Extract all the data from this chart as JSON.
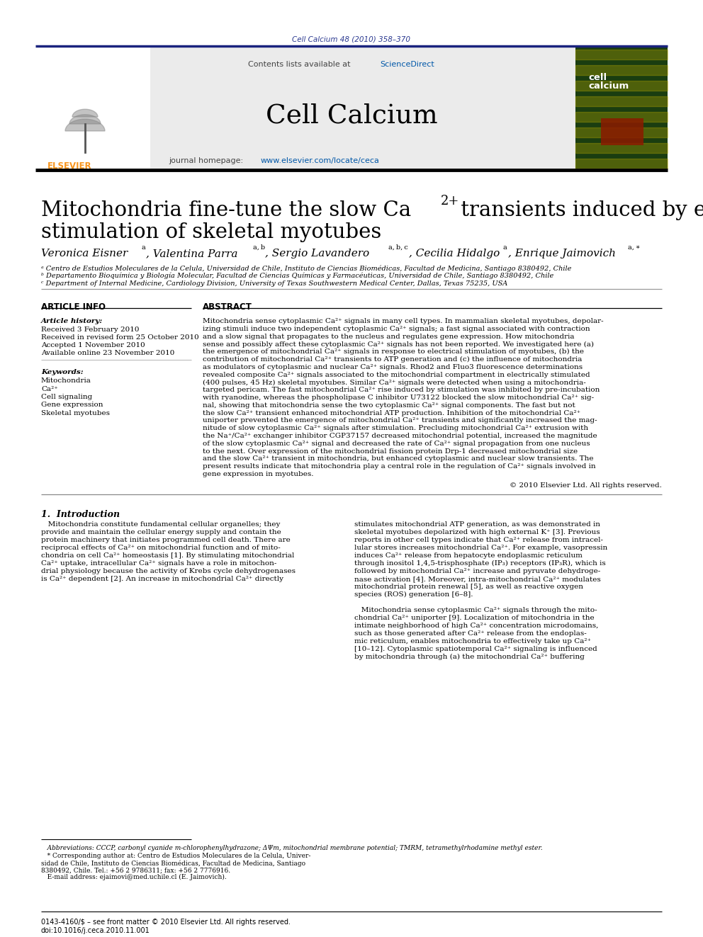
{
  "journal_ref": "Cell Calcium 48 (2010) 358–370",
  "journal_ref_color": "#2b3990",
  "link_blue": "#0057a8",
  "journal_name": "Cell Calcium",
  "journal_url_prefix": "journal homepage: ",
  "journal_url": "www.elsevier.com/locate/ceca",
  "contents_text": "Contents lists available at ",
  "science_direct": "ScienceDirect",
  "title_part1": "Mitochondria fine-tune the slow Ca",
  "title_sup": "2+",
  "title_part2": " transients induced by electrical",
  "title_line2": "stimulation of skeletal myotubes",
  "affil_a": "ᵃ Centro de Estudios Moleculares de la Celula, Universidad de Chile, Instituto de Ciencias Biomédicas, Facultad de Medicina, Santiago 8380492, Chile",
  "affil_b": "ᵇ Departamento Bioquímica y Biología Molecular, Facultad de Ciencias Químicas y Farmacéuticas, Universidad de Chile, Santiago 8380492, Chile",
  "affil_c": "ᶜ Department of Internal Medicine, Cardiology Division, University of Texas Southwestern Medical Center, Dallas, Texas 75235, USA",
  "article_info_header": "ARTICLE INFO",
  "abstract_header": "ABSTRACT",
  "article_history_label": "Article history:",
  "received1": "Received 3 February 2010",
  "received2": "Received in revised form 25 October 2010",
  "accepted": "Accepted 1 November 2010",
  "available": "Available online 23 November 2010",
  "keywords_label": "Keywords:",
  "keywords": [
    "Mitochondria",
    "Ca²⁺",
    "Cell signaling",
    "Gene expression",
    "Skeletal myotubes"
  ],
  "abstract_lines": [
    "Mitochondria sense cytoplasmic Ca²⁺ signals in many cell types. In mammalian skeletal myotubes, depolar-",
    "izing stimuli induce two independent cytoplasmic Ca²⁺ signals; a fast signal associated with contraction",
    "and a slow signal that propagates to the nucleus and regulates gene expression. How mitochondria",
    "sense and possibly affect these cytoplasmic Ca²⁺ signals has not been reported. We investigated here (a)",
    "the emergence of mitochondrial Ca²⁺ signals in response to electrical stimulation of myotubes, (b) the",
    "contribution of mitochondrial Ca²⁺ transients to ATP generation and (c) the influence of mitochondria",
    "as modulators of cytoplasmic and nuclear Ca²⁺ signals. Rhod2 and Fluo3 fluorescence determinations",
    "revealed composite Ca²⁺ signals associated to the mitochondrial compartment in electrically stimulated",
    "(400 pulses, 45 Hz) skeletal myotubes. Similar Ca²⁺ signals were detected when using a mitochondria-",
    "targeted pericam. The fast mitochondrial Ca²⁺ rise induced by stimulation was inhibited by pre-incubation",
    "with ryanodine, whereas the phospholipase C inhibitor U73122 blocked the slow mitochondrial Ca²⁺ sig-",
    "nal, showing that mitochondria sense the two cytoplasmic Ca²⁺ signal components. The fast but not",
    "the slow Ca²⁺ transient enhanced mitochondrial ATP production. Inhibition of the mitochondrial Ca²⁺",
    "uniporter prevented the emergence of mitochondrial Ca²⁺ transients and significantly increased the mag-",
    "nitude of slow cytoplasmic Ca²⁺ signals after stimulation. Precluding mitochondrial Ca²⁺ extrusion with",
    "the Na⁺/Ca²⁺ exchanger inhibitor CGP37157 decreased mitochondrial potential, increased the magnitude",
    "of the slow cytoplasmic Ca²⁺ signal and decreased the rate of Ca²⁺ signal propagation from one nucleus",
    "to the next. Over expression of the mitochondrial fission protein Drp-1 decreased mitochondrial size",
    "and the slow Ca²⁺ transient in mitochondria, but enhanced cytoplasmic and nuclear slow transients. The",
    "present results indicate that mitochondria play a central role in the regulation of Ca²⁺ signals involved in",
    "gene expression in myotubes."
  ],
  "copyright": "© 2010 Elsevier Ltd. All rights reserved.",
  "intro_header": "1.  Introduction",
  "intro_left_lines": [
    "   Mitochondria constitute fundamental cellular organelles; they",
    "provide and maintain the cellular energy supply and contain the",
    "protein machinery that initiates programmed cell death. There are",
    "reciprocal effects of Ca²⁺ on mitochondrial function and of mito-",
    "chondria on cell Ca²⁺ homeostasis [1]. By stimulating mitochondrial",
    "Ca²⁺ uptake, intracellular Ca²⁺ signals have a role in mitochon-",
    "drial physiology because the activity of Krebs cycle dehydrogenases",
    "is Ca²⁺ dependent [2]. An increase in mitochondrial Ca²⁺ directly"
  ],
  "intro_right_lines": [
    "stimulates mitochondrial ATP generation, as was demonstrated in",
    "skeletal myotubes depolarized with high external K⁺ [3]. Previous",
    "reports in other cell types indicate that Ca²⁺ release from intracel-",
    "lular stores increases mitochondrial Ca²⁺. For example, vasopressin",
    "induces Ca²⁺ release from hepatocyte endoplasmic reticulum",
    "through inositol 1,4,5-trisphosphate (IP₃) receptors (IP₃R), which is",
    "followed by mitochondrial Ca²⁺ increase and pyruvate dehydroge-",
    "nase activation [4]. Moreover, intra-mitochondrial Ca²⁺ modulates",
    "mitochondrial protein renewal [5], as well as reactive oxygen",
    "species (ROS) generation [6–8].",
    "",
    "   Mitochondria sense cytoplasmic Ca²⁺ signals through the mito-",
    "chondrial Ca²⁺ uniporter [9]. Localization of mitochondria in the",
    "intimate neighborhood of high Ca²⁺ concentration microdomains,",
    "such as those generated after Ca²⁺ release from the endoplas-",
    "mic reticulum, enables mitochondria to effectively take up Ca²⁺",
    "[10–12]. Cytoplasmic spatiotemporal Ca²⁺ signaling is influenced",
    "by mitochondria through (a) the mitochondrial Ca²⁺ buffering"
  ],
  "footnote_abbrev": "   Abbreviations: CCCP, carbonyl cyanide m-chlorophenylhydrazone; ΔΨm, mitochondrial membrane potential; TMRM, tetramethylrhodamine methyl ester.",
  "footnote_corr1": "   * Corresponding author at: Centro de Estudios Moleculares de la Celula, Univer-",
  "footnote_corr2": "sidad de Chile, Instituto de Ciencias Biomédicas, Facultad de Medicina, Santiago",
  "footnote_corr3": "8380492, Chile. Tel.: +56 2 9786311; fax: +56 2 7776916.",
  "footnote_email": "   E-mail address: ejaimovi@med.uchile.cl (E. Jaimovich).",
  "bottom_line1": "0143-4160/$ – see front matter © 2010 Elsevier Ltd. All rights reserved.",
  "bottom_line2": "doi:10.1016/j.ceca.2010.11.001",
  "bg_color": "#ffffff",
  "header_bg": "#ebebeb",
  "elsevier_orange": "#f7941d",
  "cover_green_dark": "#1a3d0f",
  "cover_green": "#2d5a1b"
}
